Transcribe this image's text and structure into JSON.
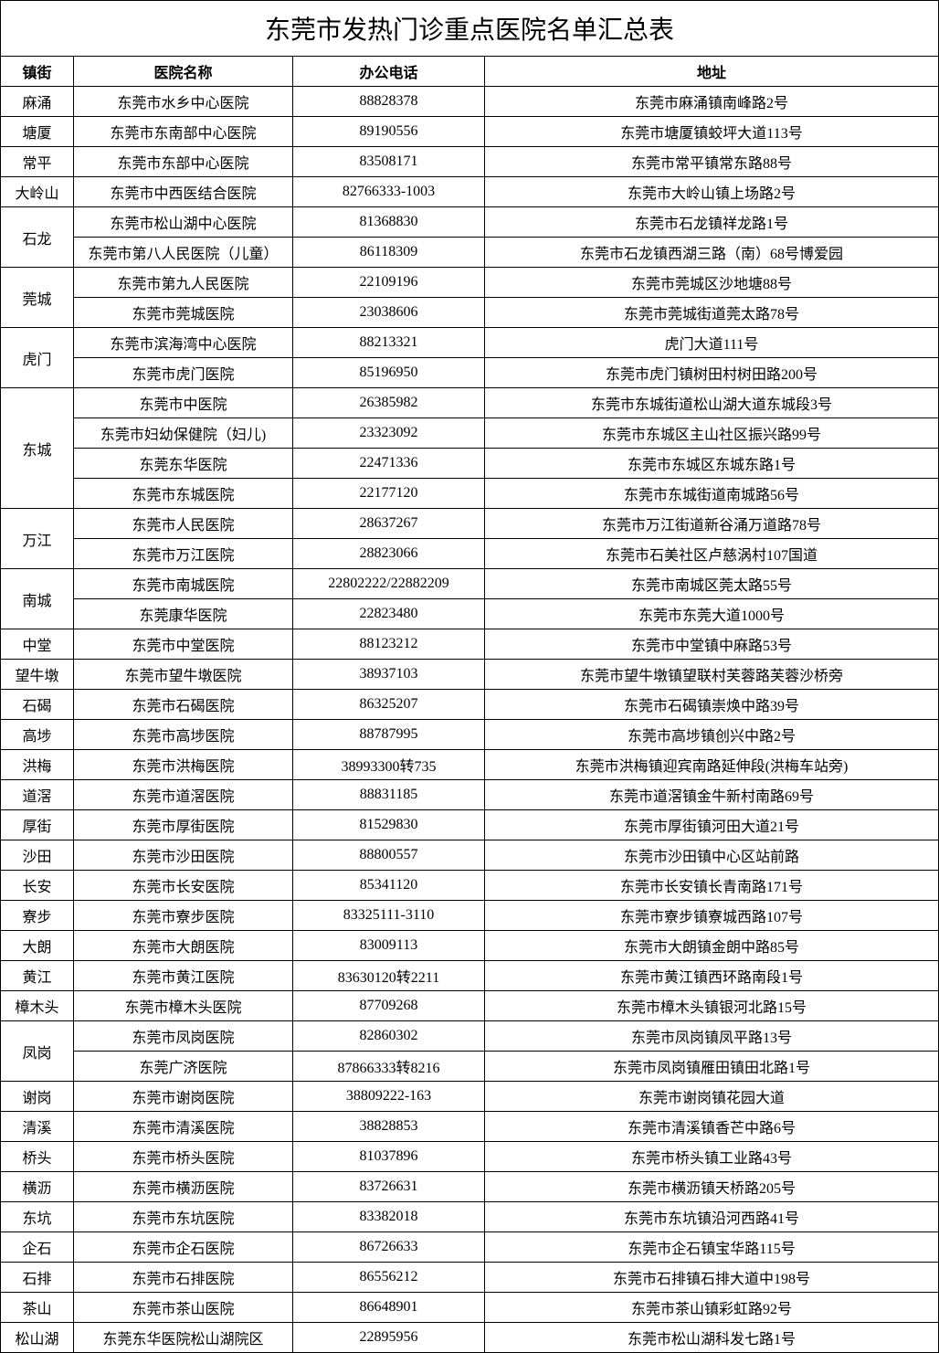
{
  "title": "东莞市发热门诊重点医院名单汇总表",
  "headers": {
    "town": "镇街",
    "hospital": "医院名称",
    "phone": "办公电话",
    "address": "地址"
  },
  "column_widths": {
    "town": 80,
    "hospital": 240,
    "phone": 210
  },
  "colors": {
    "border": "#000000",
    "background": "#ffffff",
    "text": "#000000"
  },
  "fonts": {
    "title_size": 28,
    "cell_size": 16,
    "header_weight": "bold"
  },
  "groups": [
    {
      "town": "麻涌",
      "rows": [
        {
          "hospital": "东莞市水乡中心医院",
          "phone": "88828378",
          "address": "东莞市麻涌镇南峰路2号"
        }
      ]
    },
    {
      "town": "塘厦",
      "rows": [
        {
          "hospital": "东莞市东南部中心医院",
          "phone": "89190556",
          "address": "东莞市塘厦镇蛟坪大道113号"
        }
      ]
    },
    {
      "town": "常平",
      "rows": [
        {
          "hospital": "东莞市东部中心医院",
          "phone": "83508171",
          "address": "东莞市常平镇常东路88号"
        }
      ]
    },
    {
      "town": "大岭山",
      "rows": [
        {
          "hospital": "东莞市中西医结合医院",
          "phone": "82766333-1003",
          "address": "东莞市大岭山镇上场路2号"
        }
      ]
    },
    {
      "town": "石龙",
      "rows": [
        {
          "hospital": "东莞市松山湖中心医院",
          "phone": "81368830",
          "address": "东莞市石龙镇祥龙路1号"
        },
        {
          "hospital": "东莞市第八人民医院（儿童）",
          "phone": "86118309",
          "address": "东莞市石龙镇西湖三路（南）68号博爱园"
        }
      ]
    },
    {
      "town": "莞城",
      "rows": [
        {
          "hospital": "东莞市第九人民医院",
          "phone": "22109196",
          "address": "东莞市莞城区沙地塘88号"
        },
        {
          "hospital": "东莞市莞城医院",
          "phone": "23038606",
          "address": "东莞市莞城街道莞太路78号"
        }
      ]
    },
    {
      "town": "虎门",
      "rows": [
        {
          "hospital": "东莞市滨海湾中心医院",
          "phone": "88213321",
          "address": "虎门大道111号"
        },
        {
          "hospital": "东莞市虎门医院",
          "phone": "85196950",
          "address": "东莞市虎门镇树田村树田路200号"
        }
      ]
    },
    {
      "town": "东城",
      "rows": [
        {
          "hospital": "东莞市中医院",
          "phone": "26385982",
          "address": "东莞市东城街道松山湖大道东城段3号"
        },
        {
          "hospital": "东莞市妇幼保健院（妇儿)",
          "phone": "23323092",
          "address": "东莞市东城区主山社区振兴路99号"
        },
        {
          "hospital": "东莞东华医院",
          "phone": "22471336",
          "address": "东莞市东城区东城东路1号"
        },
        {
          "hospital": "东莞市东城医院",
          "phone": "22177120",
          "address": "东莞市东城街道南城路56号"
        }
      ]
    },
    {
      "town": "万江",
      "rows": [
        {
          "hospital": "东莞市人民医院",
          "phone": "28637267",
          "address": "东莞市万江街道新谷涌万道路78号"
        },
        {
          "hospital": "东莞市万江医院",
          "phone": "28823066",
          "address": "东莞市石美社区卢慈涡村107国道"
        }
      ]
    },
    {
      "town": "南城",
      "rows": [
        {
          "hospital": "东莞市南城医院",
          "phone": "22802222/22882209",
          "address": "东莞市南城区莞太路55号"
        },
        {
          "hospital": "东莞康华医院",
          "phone": "22823480",
          "address": "东莞市东莞大道1000号"
        }
      ]
    },
    {
      "town": "中堂",
      "rows": [
        {
          "hospital": "东莞市中堂医院",
          "phone": "88123212",
          "address": "东莞市中堂镇中麻路53号"
        }
      ]
    },
    {
      "town": "望牛墩",
      "rows": [
        {
          "hospital": "东莞市望牛墩医院",
          "phone": "38937103",
          "address": "东莞市望牛墩镇望联村芙蓉路芙蓉沙桥旁"
        }
      ]
    },
    {
      "town": "石碣",
      "rows": [
        {
          "hospital": "东莞市石碣医院",
          "phone": "86325207",
          "address": "东莞市石碣镇崇焕中路39号"
        }
      ]
    },
    {
      "town": "高埗",
      "rows": [
        {
          "hospital": "东莞市高埗医院",
          "phone": "88787995",
          "address": "东莞市高埗镇创兴中路2号"
        }
      ]
    },
    {
      "town": "洪梅",
      "rows": [
        {
          "hospital": "东莞市洪梅医院",
          "phone": "38993300转735",
          "address": "东莞市洪梅镇迎宾南路延伸段(洪梅车站旁)"
        }
      ]
    },
    {
      "town": "道滘",
      "rows": [
        {
          "hospital": "东莞市道滘医院",
          "phone": "88831185",
          "address": "东莞市道滘镇金牛新村南路69号"
        }
      ]
    },
    {
      "town": "厚街",
      "rows": [
        {
          "hospital": "东莞市厚街医院",
          "phone": "81529830",
          "address": "东莞市厚街镇河田大道21号"
        }
      ]
    },
    {
      "town": "沙田",
      "rows": [
        {
          "hospital": "东莞市沙田医院",
          "phone": "88800557",
          "address": "东莞市沙田镇中心区站前路"
        }
      ]
    },
    {
      "town": "长安",
      "rows": [
        {
          "hospital": "东莞市长安医院",
          "phone": "85341120",
          "address": "东莞市长安镇长青南路171号"
        }
      ]
    },
    {
      "town": "寮步",
      "rows": [
        {
          "hospital": "东莞市寮步医院",
          "phone": "83325111-3110",
          "address": "东莞市寮步镇寮城西路107号"
        }
      ]
    },
    {
      "town": "大朗",
      "rows": [
        {
          "hospital": "东莞市大朗医院",
          "phone": "83009113",
          "address": "东莞市大朗镇金朗中路85号"
        }
      ]
    },
    {
      "town": "黄江",
      "rows": [
        {
          "hospital": "东莞市黄江医院",
          "phone": "83630120转2211",
          "address": "东莞市黄江镇西环路南段1号"
        }
      ]
    },
    {
      "town": "樟木头",
      "rows": [
        {
          "hospital": "东莞市樟木头医院",
          "phone": "87709268",
          "address": "东莞市樟木头镇银河北路15号"
        }
      ]
    },
    {
      "town": "凤岗",
      "rows": [
        {
          "hospital": "东莞市凤岗医院",
          "phone": "82860302",
          "address": "东莞市凤岗镇凤平路13号"
        },
        {
          "hospital": "东莞广济医院",
          "phone": "87866333转8216",
          "address": "东莞市凤岗镇雁田镇田北路1号"
        }
      ]
    },
    {
      "town": "谢岗",
      "rows": [
        {
          "hospital": "东莞市谢岗医院",
          "phone": "38809222-163",
          "address": "东莞市谢岗镇花园大道"
        }
      ]
    },
    {
      "town": "清溪",
      "rows": [
        {
          "hospital": "东莞市清溪医院",
          "phone": "38828853",
          "address": "东莞市清溪镇香芒中路6号"
        }
      ]
    },
    {
      "town": "桥头",
      "rows": [
        {
          "hospital": "东莞市桥头医院",
          "phone": "81037896",
          "address": "东莞市桥头镇工业路43号"
        }
      ]
    },
    {
      "town": "横沥",
      "rows": [
        {
          "hospital": "东莞市横沥医院",
          "phone": "83726631",
          "address": "东莞市横沥镇天桥路205号"
        }
      ]
    },
    {
      "town": "东坑",
      "rows": [
        {
          "hospital": "东莞市东坑医院",
          "phone": "83382018",
          "address": "东莞市东坑镇沿河西路41号"
        }
      ]
    },
    {
      "town": "企石",
      "rows": [
        {
          "hospital": "东莞市企石医院",
          "phone": "86726633",
          "address": "东莞市企石镇宝华路115号"
        }
      ]
    },
    {
      "town": "石排",
      "rows": [
        {
          "hospital": "东莞市石排医院",
          "phone": "86556212",
          "address": "东莞市石排镇石排大道中198号"
        }
      ]
    },
    {
      "town": "茶山",
      "rows": [
        {
          "hospital": "东莞市茶山医院",
          "phone": "86648901",
          "address": "东莞市茶山镇彩虹路92号"
        }
      ]
    },
    {
      "town": "松山湖",
      "rows": [
        {
          "hospital": "东莞东华医院松山湖院区",
          "phone": "22895956",
          "address": "东莞市松山湖科发七路1号"
        }
      ]
    }
  ]
}
